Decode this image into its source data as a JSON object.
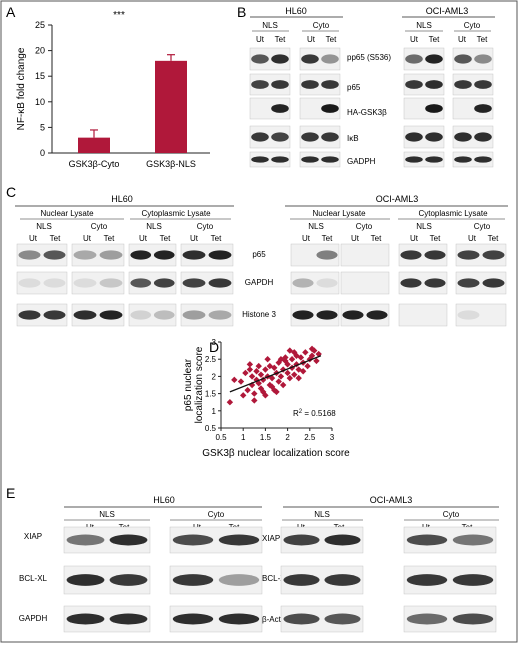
{
  "panel_letters": {
    "a": "A",
    "b": "B",
    "c": "C",
    "d": "D",
    "e": "E"
  },
  "panel_a": {
    "significance": "***",
    "ylabel": "NF-κB fold change",
    "yticks": [
      "0",
      "5",
      "10",
      "15",
      "20",
      "25"
    ],
    "bar_color": "#b0183a",
    "chart_data": {
      "type": "bar",
      "categories": [
        "GSK3β-Cyto",
        "GSK3β-NLS"
      ],
      "values": [
        3.0,
        18.0
      ],
      "errors": [
        1.5,
        1.2
      ],
      "ylabel": "NF-κB fold change",
      "ylim": [
        0,
        25
      ],
      "yticks": [
        0,
        5,
        10,
        15,
        20,
        25
      ]
    }
  },
  "panel_b": {
    "group1": "HL60",
    "group2": "OCI-AML3",
    "nls": "NLS",
    "cyto": "Cyto",
    "ut": "Ut",
    "tet": "Tet",
    "rows": [
      "pp65 (S536)",
      "p65",
      "HA-GSK3β",
      "IκB",
      "GADPH"
    ]
  },
  "panel_c": {
    "group1": "HL60",
    "group2": "OCI-AML3",
    "nuclear": "Nuclear Lysate",
    "cytoplasmic": "Cytoplasmic Lysate",
    "nls": "NLS",
    "cyto": "Cyto",
    "ut": "Ut",
    "tet": "Tet",
    "rows": [
      "p65",
      "GAPDH",
      "Histone 3"
    ]
  },
  "panel_d": {
    "ylabel_line1": "p65 nuclear",
    "ylabel_line2": "localization score",
    "xlabel": "GSK3β nuclear localization score",
    "r2_prefix": "R",
    "r2_sup": "2",
    "r2_value": " = 0.5168",
    "point_color": "#b0183a",
    "chart_data": {
      "type": "scatter",
      "xlim": [
        0.5,
        3
      ],
      "ylim": [
        0.5,
        3
      ],
      "xticks": [
        "0.5",
        "1",
        "1.5",
        "2",
        "2.5",
        "3"
      ],
      "yticks": [
        "0.5",
        "1",
        "1.5",
        "2",
        "2.5",
        "3"
      ],
      "trendline": {
        "x": [
          0.7,
          2.75
        ],
        "y": [
          1.55,
          2.6
        ]
      },
      "x": [
        0.7,
        0.8,
        0.95,
        1.0,
        1.05,
        1.1,
        1.15,
        1.2,
        1.2,
        1.25,
        1.3,
        1.3,
        1.35,
        1.4,
        1.4,
        1.45,
        1.5,
        1.5,
        1.55,
        1.6,
        1.6,
        1.65,
        1.7,
        1.7,
        1.75,
        1.8,
        1.8,
        1.85,
        1.9,
        1.9,
        1.95,
        2.0,
        2.0,
        2.05,
        2.1,
        2.1,
        2.15,
        2.2,
        2.2,
        2.25,
        2.3,
        2.35,
        2.4,
        2.45,
        2.5,
        2.55,
        2.6,
        2.65,
        2.7,
        1.25,
        1.45,
        1.65,
        1.85,
        2.05,
        2.25,
        1.15,
        1.35,
        1.55,
        1.75,
        1.95,
        2.15,
        2.35,
        2.55
      ],
      "y": [
        1.25,
        1.9,
        1.85,
        1.45,
        2.1,
        1.6,
        2.2,
        1.75,
        2.0,
        1.5,
        1.9,
        2.15,
        1.8,
        1.65,
        2.05,
        1.9,
        2.2,
        1.45,
        2.0,
        1.75,
        2.3,
        1.95,
        1.6,
        2.25,
        2.1,
        1.85,
        2.4,
        2.0,
        2.2,
        1.75,
        2.45,
        2.1,
        2.35,
        1.95,
        2.5,
        2.25,
        2.05,
        2.6,
        2.35,
        2.2,
        2.55,
        2.4,
        2.7,
        2.3,
        2.5,
        2.6,
        2.75,
        2.45,
        2.65,
        1.3,
        1.55,
        1.7,
        2.5,
        2.75,
        1.95,
        2.35,
        2.3,
        2.5,
        1.55,
        2.55,
        2.7,
        2.15,
        2.8
      ]
    }
  },
  "panel_e": {
    "group1": "HL60",
    "group2": "OCI-AML3",
    "nls": "NLS",
    "cyto": "Cyto",
    "ut": "Ut",
    "tet": "Tet",
    "rows_left": [
      "XIAP",
      "BCL-XL",
      "GAPDH"
    ],
    "rows_right": [
      "XIAP",
      "BCL-XL",
      "β-Actin"
    ]
  }
}
